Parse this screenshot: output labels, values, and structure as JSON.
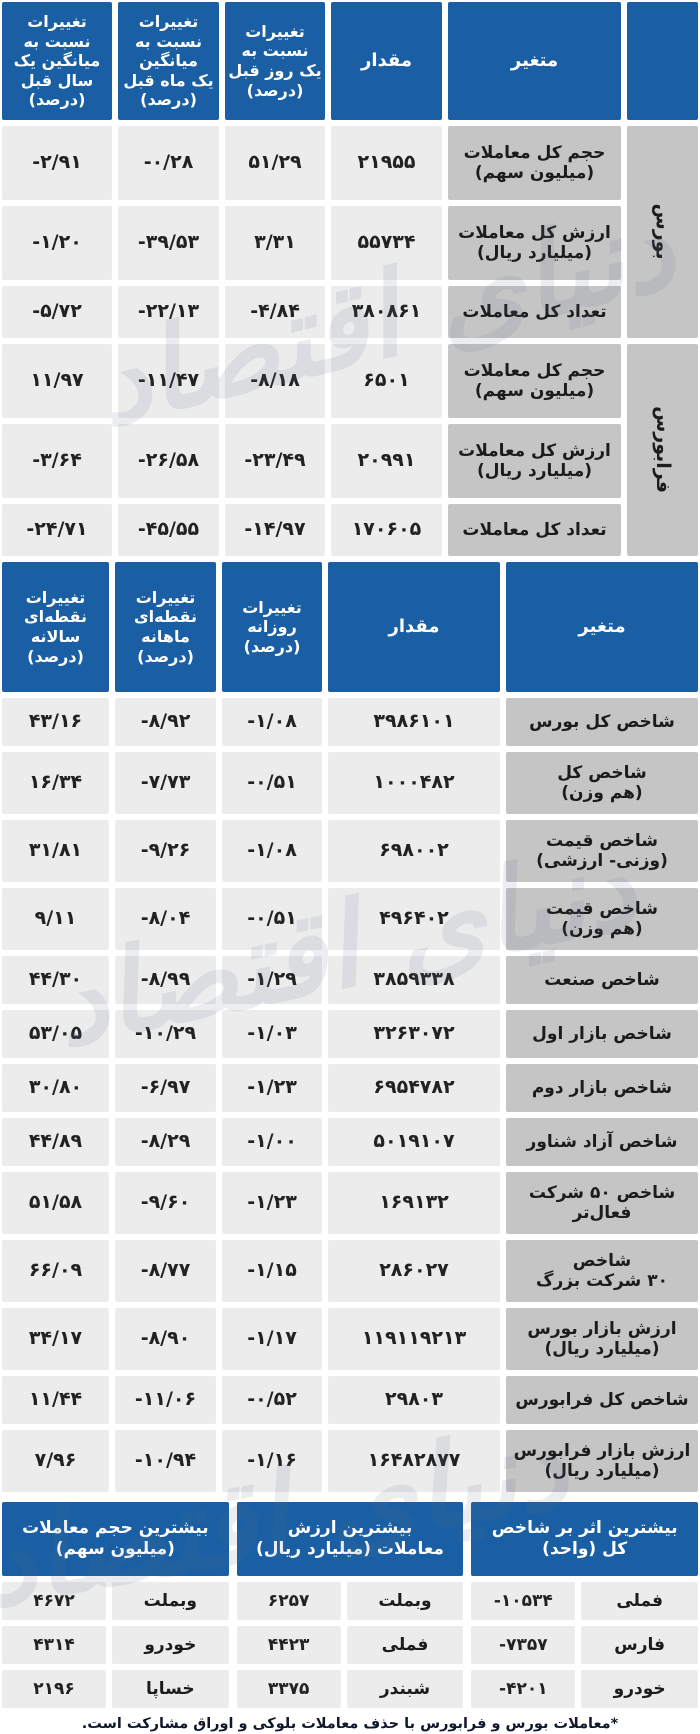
{
  "colors": {
    "header_blue": "#1a5fa3",
    "cell_light": "#ececec",
    "cell_dark": "#c5c5c5"
  },
  "watermark": "دنیای اقتصاد",
  "footnote": "*معاملات بورس و فرابورس با حذف معاملات بلوکی و اوراق مشارکت است.",
  "chart_data": [
    {
      "type": "table",
      "header": {
        "variable": "متغیر",
        "value": "مقدار",
        "day": "تغییرات\nنسبت به\nیک روز قبل\n(درصد)",
        "month": "تغییرات\nنسبت به\nمیانگین\nیک ماه قبل\n(درصد)",
        "year": "تغییرات\nنسبت به\nمیانگین یک\nسال قبل\n(درصد)"
      },
      "groups": [
        {
          "label": "بورس"
        },
        {
          "label": "فرابورس"
        }
      ],
      "rows": [
        {
          "group": "بورس",
          "variable": "حجم کل معاملات\n(میلیون سهم)",
          "value": "۲۱۹۵۵",
          "value_num": 21955,
          "day": "۵۱/۲۹",
          "day_num": 51.29,
          "month": "-۰/۲۸",
          "month_num": -0.28,
          "year": "-۲/۹۱",
          "year_num": -2.91
        },
        {
          "group": "بورس",
          "variable": "ارزش کل معاملات\n(میلیارد ریال)",
          "value": "۵۵۷۳۴",
          "value_num": 55734,
          "day": "۳/۳۱",
          "day_num": 3.31,
          "month": "-۳۹/۵۳",
          "month_num": -39.53,
          "year": "-۱/۲۰",
          "year_num": -1.2
        },
        {
          "group": "بورس",
          "variable": "تعداد کل معاملات",
          "value": "۳۸۰۸۶۱",
          "value_num": 380861,
          "day": "-۴/۸۴",
          "day_num": -4.84,
          "month": "-۲۲/۱۳",
          "month_num": -22.13,
          "year": "-۵/۷۲",
          "year_num": -5.72
        },
        {
          "group": "فرابورس",
          "variable": "حجم کل معاملات\n(میلیون سهم)",
          "value": "۶۵۰۱",
          "value_num": 6501,
          "day": "-۸/۱۸",
          "day_num": -8.18,
          "month": "-۱۱/۴۷",
          "month_num": -11.47,
          "year": "۱۱/۹۷",
          "year_num": 11.97
        },
        {
          "group": "فرابورس",
          "variable": "ارزش کل معاملات\n(میلیارد ریال)",
          "value": "۲۰۹۹۱",
          "value_num": 20991,
          "day": "-۲۳/۴۹",
          "day_num": -23.49,
          "month": "-۲۶/۵۸",
          "month_num": -26.58,
          "year": "-۳/۶۴",
          "year_num": -3.64
        },
        {
          "group": "فرابورس",
          "variable": "تعداد کل معاملات",
          "value": "۱۷۰۶۰۵",
          "value_num": 170605,
          "day": "-۱۴/۹۷",
          "day_num": -14.97,
          "month": "-۴۵/۵۵",
          "month_num": -45.55,
          "year": "-۲۴/۷۱",
          "year_num": -24.71
        }
      ]
    },
    {
      "type": "table",
      "header": {
        "variable": "متغیر",
        "value": "مقدار",
        "daily": "تغییرات\nروزانه\n(درصد)",
        "monthly": "تغییرات\nنقطه‌ای\nماهانه\n(درصد)",
        "yearly": "تغییرات\nنقطه‌ای\nسالانه\n(درصد)"
      },
      "rows": [
        {
          "variable": "شاخص کل بورس",
          "value": "۳۹۸۶۱۰۱",
          "value_num": 3986101,
          "daily": "-۱/۰۸",
          "daily_num": -1.08,
          "monthly": "-۸/۹۲",
          "monthly_num": -8.92,
          "yearly": "۴۳/۱۶",
          "yearly_num": 43.16
        },
        {
          "variable": "شاخص کل\n(هم وزن)",
          "value": "۱۰۰۰۴۸۲",
          "value_num": 1000482,
          "daily": "-۰/۵۱",
          "daily_num": -0.51,
          "monthly": "-۷/۷۳",
          "monthly_num": -7.73,
          "yearly": "۱۶/۳۴",
          "yearly_num": 16.34
        },
        {
          "variable": "شاخص قیمت\n(وزنی- ارزشی)",
          "value": "۶۹۸۰۰۲",
          "value_num": 698002,
          "daily": "-۱/۰۸",
          "daily_num": -1.08,
          "monthly": "-۹/۲۶",
          "monthly_num": -9.26,
          "yearly": "۳۱/۸۱",
          "yearly_num": 31.81
        },
        {
          "variable": "شاخص قیمت\n(هم وزن)",
          "value": "۴۹۶۴۰۲",
          "value_num": 496402,
          "daily": "-۰/۵۱",
          "daily_num": -0.51,
          "monthly": "-۸/۰۴",
          "monthly_num": -8.04,
          "yearly": "۹/۱۱",
          "yearly_num": 9.11
        },
        {
          "variable": "شاخص صنعت",
          "value": "۳۸۵۹۳۳۸",
          "value_num": 3859338,
          "daily": "-۱/۲۹",
          "daily_num": -1.29,
          "monthly": "-۸/۹۹",
          "monthly_num": -8.99,
          "yearly": "۴۴/۳۰",
          "yearly_num": 44.3
        },
        {
          "variable": "شاخص بازار اول",
          "value": "۳۲۶۳۰۷۲",
          "value_num": 3263072,
          "daily": "-۱/۰۳",
          "daily_num": -1.03,
          "monthly": "-۱۰/۲۹",
          "monthly_num": -10.29,
          "yearly": "۵۳/۰۵",
          "yearly_num": 53.05
        },
        {
          "variable": "شاخص بازار دوم",
          "value": "۶۹۵۴۷۸۲",
          "value_num": 6954782,
          "daily": "-۱/۲۳",
          "daily_num": -1.23,
          "monthly": "-۶/۹۷",
          "monthly_num": -6.97,
          "yearly": "۳۰/۸۰",
          "yearly_num": 30.8
        },
        {
          "variable": "شاخص آزاد شناور",
          "value": "۵۰۱۹۱۰۷",
          "value_num": 5019107,
          "daily": "-۱/۰۰",
          "daily_num": -1.0,
          "monthly": "-۸/۲۹",
          "monthly_num": -8.29,
          "yearly": "۴۴/۸۹",
          "yearly_num": 44.89
        },
        {
          "variable": "شاخص ۵۰ شرکت\nفعال‌تر",
          "value": "۱۶۹۱۳۲",
          "value_num": 169132,
          "daily": "-۱/۲۳",
          "daily_num": -1.23,
          "monthly": "-۹/۶۰",
          "monthly_num": -9.6,
          "yearly": "۵۱/۵۸",
          "yearly_num": 51.58
        },
        {
          "variable": "شاخص\n۳۰ شرکت بزرگ",
          "value": "۲۸۶۰۲۷",
          "value_num": 286027,
          "daily": "-۱/۱۵",
          "daily_num": -1.15,
          "monthly": "-۸/۷۷",
          "monthly_num": -8.77,
          "yearly": "۶۶/۰۹",
          "yearly_num": 66.09
        },
        {
          "variable": "ارزش بازار بورس\n(میلیارد ریال)",
          "value": "۱۱۹۱۱۹۲۱۳",
          "value_num": 119119213,
          "daily": "-۱/۱۷",
          "daily_num": -1.17,
          "monthly": "-۸/۹۰",
          "monthly_num": -8.9,
          "yearly": "۳۴/۱۷",
          "yearly_num": 34.17
        },
        {
          "variable": "شاخص کل فرابورس",
          "value": "۲۹۸۰۳",
          "value_num": 29803,
          "daily": "-۰/۵۲",
          "daily_num": -0.52,
          "monthly": "-۱۱/۰۶",
          "monthly_num": -11.06,
          "yearly": "۱۱/۴۴",
          "yearly_num": 11.44
        },
        {
          "variable": "ارزش بازار فرابورس\n(میلیارد ریال)",
          "value": "۱۶۴۸۲۸۷۷",
          "value_num": 16482877,
          "daily": "-۱/۱۶",
          "daily_num": -1.16,
          "monthly": "-۱۰/۹۴",
          "monthly_num": -10.94,
          "yearly": "۷/۹۶",
          "yearly_num": 7.96
        }
      ]
    },
    {
      "type": "table",
      "title": "بیشترین اثر بر شاخص\nکل (واحد)",
      "rows": [
        {
          "name": "فملی",
          "value": "-۱۰۵۳۴",
          "value_num": -10534
        },
        {
          "name": "فارس",
          "value": "-۷۳۵۷",
          "value_num": -7357
        },
        {
          "name": "خودرو",
          "value": "-۴۲۰۱",
          "value_num": -4201
        }
      ]
    },
    {
      "type": "table",
      "title": "بیشترین ارزش\nمعاملات (میلیارد ریال)",
      "rows": [
        {
          "name": "وبملت",
          "value": "۶۲۵۷",
          "value_num": 6257
        },
        {
          "name": "فملی",
          "value": "۴۴۲۳",
          "value_num": 4423
        },
        {
          "name": "شبندر",
          "value": "۳۳۷۵",
          "value_num": 3375
        }
      ]
    },
    {
      "type": "table",
      "title": "بیشترین حجم معاملات\n(میلیون سهم)",
      "rows": [
        {
          "name": "وبملت",
          "value": "۴۶۷۲",
          "value_num": 4672
        },
        {
          "name": "خودرو",
          "value": "۴۳۱۴",
          "value_num": 4314
        },
        {
          "name": "خساپا",
          "value": "۲۱۹۶",
          "value_num": 2196
        }
      ]
    }
  ]
}
